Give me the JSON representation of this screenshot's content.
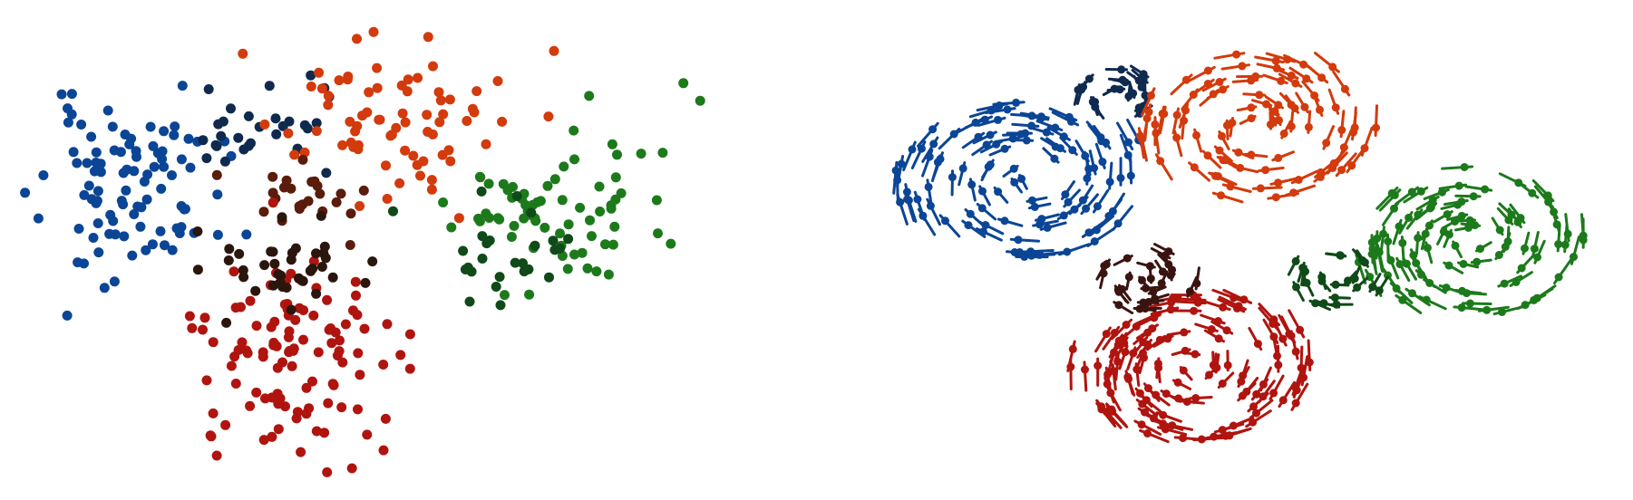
{
  "chart_data": [
    {
      "type": "scatter",
      "title": "",
      "xlabel": "",
      "ylabel": "",
      "axes_visible": false,
      "grid": false,
      "legend": "none",
      "xlim": [
        0,
        100
      ],
      "ylim": [
        0,
        100
      ],
      "clusters": [
        {
          "color": "#0b4596",
          "center": [
            15,
            62
          ],
          "spread": [
            5.5,
            9
          ],
          "n": 95
        },
        {
          "color": "#0f2a4f",
          "center": [
            31,
            76
          ],
          "spread": [
            4,
            5
          ],
          "n": 30
        },
        {
          "color": "#d33a0c",
          "center": [
            48,
            77
          ],
          "spread": [
            7,
            8
          ],
          "n": 75
        },
        {
          "color": "#5a1d0b",
          "center": [
            36,
            61
          ],
          "spread": [
            4,
            6
          ],
          "n": 24
        },
        {
          "color": "#1c7a1b",
          "center": [
            70,
            57
          ],
          "spread": [
            7,
            8
          ],
          "n": 70
        },
        {
          "color": "#0f4a18",
          "center": [
            62,
            48
          ],
          "spread": [
            4,
            7
          ],
          "n": 26
        },
        {
          "color": "#b0140f",
          "center": [
            35,
            30
          ],
          "spread": [
            6,
            10
          ],
          "n": 110
        },
        {
          "color": "#2b160e",
          "center": [
            36,
            47
          ],
          "spread": [
            6,
            5
          ],
          "n": 40
        }
      ]
    },
    {
      "type": "scatter",
      "title": "",
      "xlabel": "",
      "ylabel": "",
      "axes_visible": false,
      "grid": false,
      "legend": "none",
      "markers": "dot-with-velocity-arrow",
      "xlim": [
        0,
        100
      ],
      "ylim": [
        0,
        100
      ],
      "clusters": [
        {
          "color": "#0b4596",
          "center": [
            25,
            65
          ],
          "radius": 15,
          "n": 105
        },
        {
          "color": "#0f2a4f",
          "center": [
            37,
            82
          ],
          "radius": 5,
          "n": 22
        },
        {
          "color": "#d33a0c",
          "center": [
            54,
            76
          ],
          "radius": 14,
          "n": 90
        },
        {
          "color": "#1c7a1b",
          "center": [
            81,
            52
          ],
          "radius": 14,
          "n": 95
        },
        {
          "color": "#0f4a18",
          "center": [
            64,
            45
          ],
          "radius": 6,
          "n": 22
        },
        {
          "color": "#b0140f",
          "center": [
            46,
            26
          ],
          "radius": 14,
          "n": 120
        },
        {
          "color": "#3a1410",
          "center": [
            40,
            44
          ],
          "radius": 6,
          "n": 28
        }
      ]
    }
  ]
}
